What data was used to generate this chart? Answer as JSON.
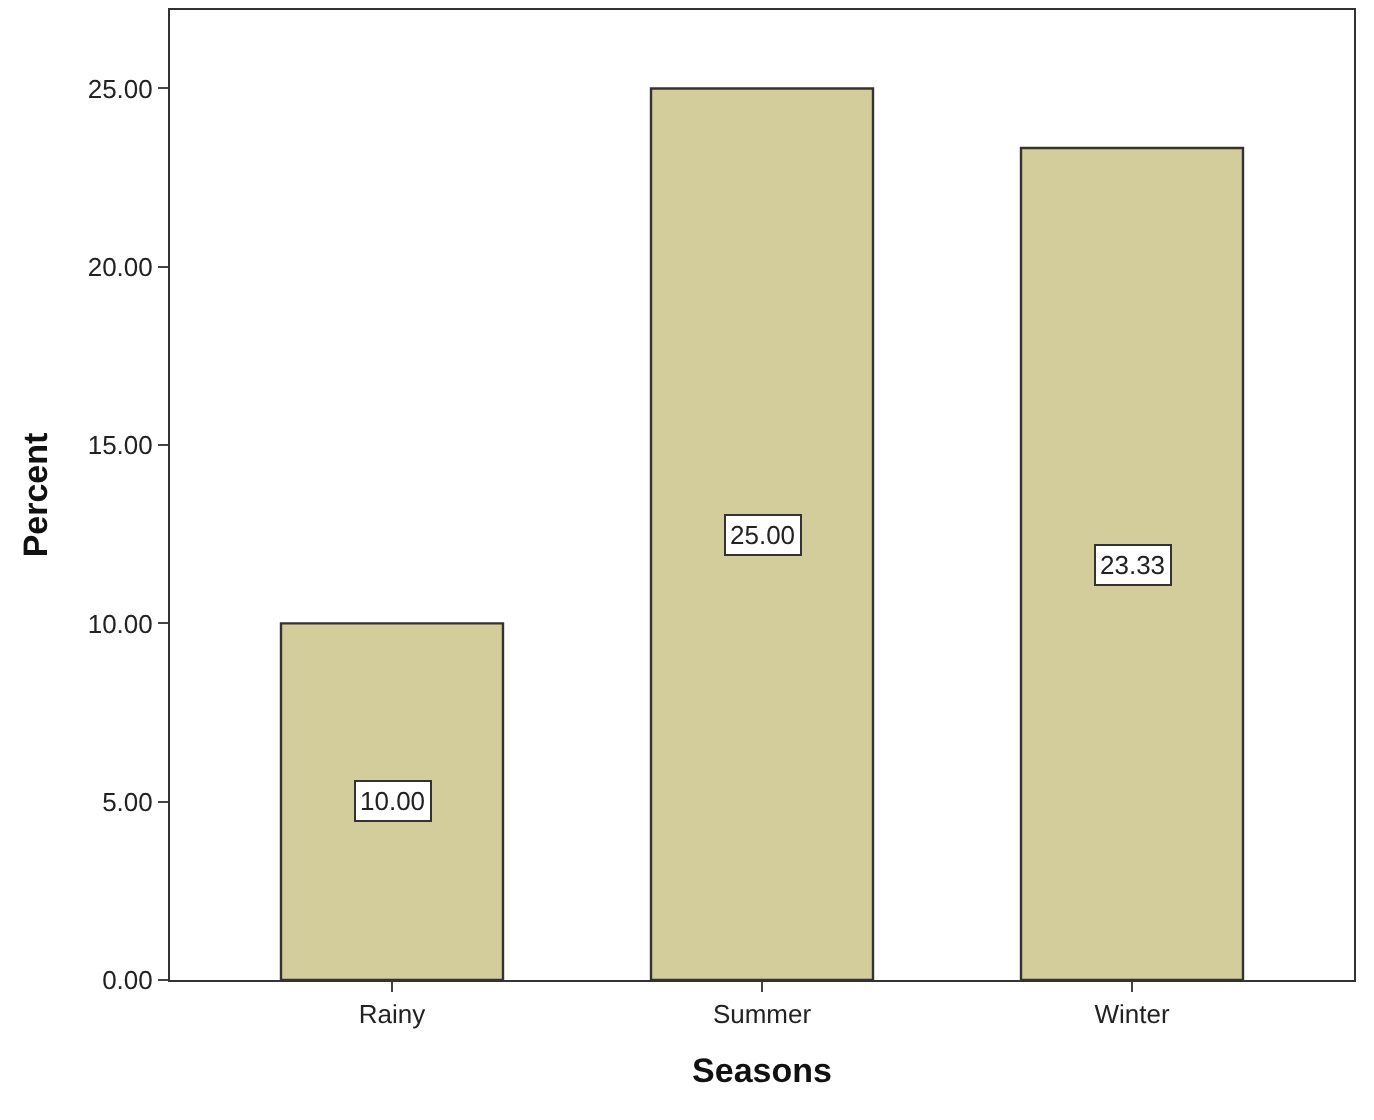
{
  "chart_data": {
    "type": "bar",
    "xlabel": "Seasons",
    "ylabel": "Percent",
    "categories": [
      "Rainy",
      "Summer",
      "Winter"
    ],
    "values": [
      10.0,
      25.0,
      23.33
    ],
    "value_labels": [
      "10.00",
      "25.00",
      "23.33"
    ],
    "color": "#d3cd9b",
    "ylim": [
      0,
      27.2
    ],
    "yticks": [
      {
        "value": 0,
        "label": "0.00"
      },
      {
        "value": 5,
        "label": "5.00"
      },
      {
        "value": 10,
        "label": "10.00"
      },
      {
        "value": 15,
        "label": "15.00"
      },
      {
        "value": 20,
        "label": "20.00"
      },
      {
        "value": 25,
        "label": "25.00"
      }
    ],
    "legend": false
  }
}
